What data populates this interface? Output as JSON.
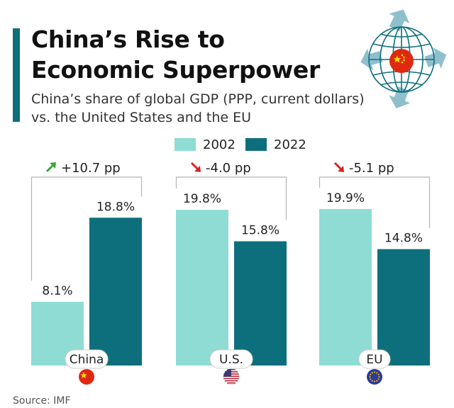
{
  "header": {
    "title": "China’s Rise to Economic Superpower",
    "subtitle": "China’s share of global GDP (PPP, current dollars) vs. the United States and the EU"
  },
  "legend": {
    "items": [
      {
        "label": "2002",
        "color": "#8fdcd4"
      },
      {
        "label": "2022",
        "color": "#0e6f7c"
      }
    ]
  },
  "source": "Source: IMF",
  "colors": {
    "accent": "#0e6f7c",
    "up_arrow": "#3aa63a",
    "down_arrow": "#d8232a"
  },
  "chart_data": {
    "type": "bar",
    "categories": [
      "China",
      "U.S.",
      "EU"
    ],
    "series": [
      {
        "name": "2002",
        "values": [
          8.1,
          19.8,
          19.9
        ],
        "labels": [
          "8.1%",
          "19.8%",
          "19.9%"
        ]
      },
      {
        "name": "2022",
        "values": [
          18.8,
          15.8,
          14.8
        ],
        "labels": [
          "18.8%",
          "15.8%",
          "14.8%"
        ]
      }
    ],
    "changes": [
      {
        "label": "+10.7 pp",
        "direction": "up"
      },
      {
        "label": "-4.0 pp",
        "direction": "down"
      },
      {
        "label": "-5.1 pp",
        "direction": "down"
      }
    ],
    "flags": [
      "china-flag-icon",
      "us-flag-icon",
      "eu-flag-icon"
    ],
    "ylim": [
      0,
      20
    ]
  }
}
